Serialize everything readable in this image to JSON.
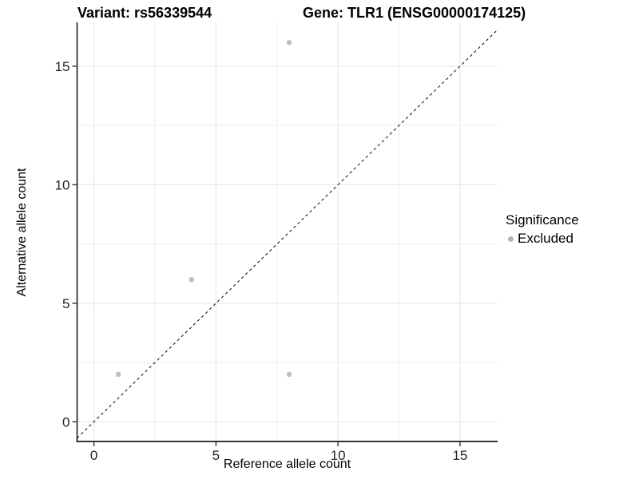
{
  "chart_data": {
    "type": "scatter",
    "titles": [
      "Variant: rs56339544",
      "Gene: TLR1 (ENSG00000174125)"
    ],
    "xlabel": "Reference allele count",
    "ylabel": "Alternative allele count",
    "x_ticks": [
      0,
      5,
      10,
      15
    ],
    "y_ticks": [
      0,
      5,
      10,
      15
    ],
    "x_minor_gridlines": [
      2.5,
      7.5,
      12.5
    ],
    "y_minor_gridlines": [
      2.5,
      7.5,
      12.5
    ],
    "xlim": [
      -0.69,
      16.54
    ],
    "ylim": [
      -0.83,
      16.85
    ],
    "grid": "major and minor, light gray, white background",
    "series": [
      {
        "name": "Excluded",
        "color": "#bdbdbd",
        "points": [
          [
            1,
            2
          ],
          [
            4,
            6
          ],
          [
            8,
            2
          ],
          [
            8,
            16
          ]
        ]
      }
    ],
    "reference_line": {
      "slope": 1,
      "intercept": 0,
      "style": "dashed",
      "color": "#1a1a1a"
    },
    "legend": {
      "title": "Significance",
      "position": "right",
      "entries": [
        {
          "label": "Excluded",
          "color": "#b3b3b3",
          "marker": "circle"
        }
      ]
    },
    "colors": {
      "major_grid": "#e4e4e4",
      "minor_grid": "#efefef",
      "axis_line": "#1a1a1a",
      "tick_mark": "#333333",
      "tick_label": "#262626",
      "point": "#bdbdbd"
    }
  }
}
